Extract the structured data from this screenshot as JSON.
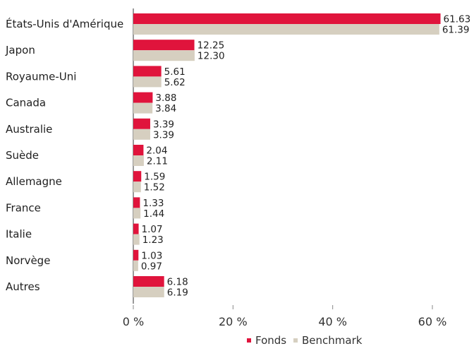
{
  "chart_data": {
    "type": "bar",
    "orientation": "horizontal",
    "categories": [
      "États-Unis d'Amérique",
      "Japon",
      "Royaume-Uni",
      "Canada",
      "Australie",
      "Suède",
      "Allemagne",
      "France",
      "Italie",
      "Norvège",
      "Autres"
    ],
    "series": [
      {
        "name": "Fonds",
        "color": "#e0143c",
        "values": [
          61.63,
          12.25,
          5.61,
          3.88,
          3.39,
          2.04,
          1.59,
          1.33,
          1.07,
          1.03,
          6.18
        ]
      },
      {
        "name": "Benchmark",
        "color": "#d6cfc0",
        "values": [
          61.39,
          12.3,
          5.62,
          3.84,
          3.39,
          2.11,
          1.52,
          1.44,
          1.23,
          0.97,
          6.19
        ]
      }
    ],
    "value_labels": [
      [
        "61.63",
        "12.25",
        "5.61",
        "3.88",
        "3.39",
        "2.04",
        "1.59",
        "1.33",
        "1.07",
        "1.03",
        "6.18"
      ],
      [
        "61.39",
        "12.30",
        "5.62",
        "3.84",
        "3.39",
        "2.11",
        "1.52",
        "1.44",
        "1.23",
        "0.97",
        "6.19"
      ]
    ],
    "xlim": [
      0,
      66
    ],
    "xticks": [
      0,
      20,
      40,
      60
    ],
    "xtick_labels": [
      "0 %",
      "20 %",
      "40 %",
      "60 %"
    ],
    "title": "",
    "xlabel": "",
    "ylabel": "",
    "grid": false,
    "legend_position": "bottom-right"
  }
}
